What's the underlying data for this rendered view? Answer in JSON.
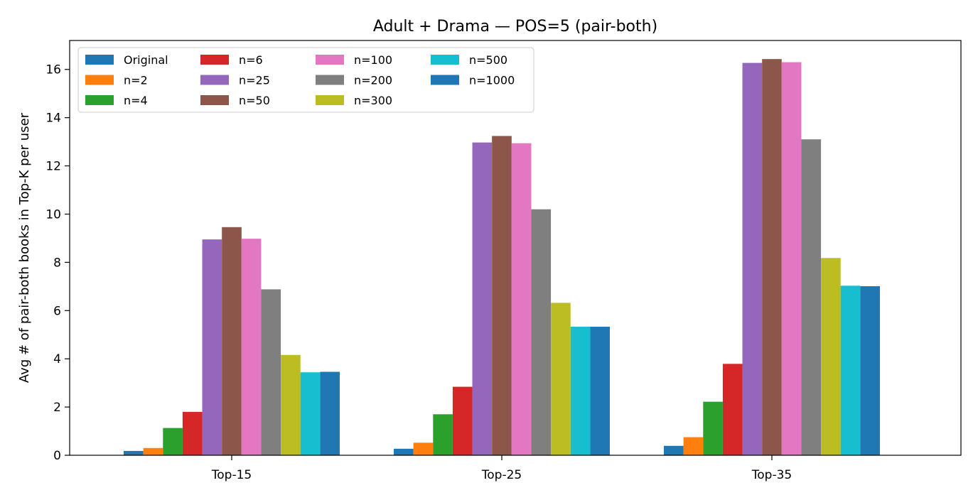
{
  "chart_data": {
    "type": "bar",
    "title": "Adult + Drama — POS=5 (pair-both)",
    "xlabel": "",
    "ylabel": "Avg # of pair-both books in Top-K per user",
    "categories": [
      "Top-15",
      "Top-25",
      "Top-35"
    ],
    "ylim": [
      0,
      17.2
    ],
    "yticks": [
      0,
      2,
      4,
      6,
      8,
      10,
      12,
      14,
      16
    ],
    "grid": false,
    "legend_position": "top-left",
    "legend_columns": 4,
    "series": [
      {
        "name": "Original",
        "color": "#1f77b4",
        "values": [
          0.18,
          0.27,
          0.39
        ]
      },
      {
        "name": "n=2",
        "color": "#ff7f0e",
        "values": [
          0.3,
          0.52,
          0.75
        ]
      },
      {
        "name": "n=4",
        "color": "#2ca02c",
        "values": [
          1.13,
          1.7,
          2.22
        ]
      },
      {
        "name": "n=6",
        "color": "#d62728",
        "values": [
          1.8,
          2.84,
          3.79
        ]
      },
      {
        "name": "n=25",
        "color": "#9467bd",
        "values": [
          8.95,
          12.97,
          16.27
        ]
      },
      {
        "name": "n=50",
        "color": "#8c564b",
        "values": [
          9.46,
          13.24,
          16.43
        ]
      },
      {
        "name": "n=100",
        "color": "#e377c2",
        "values": [
          8.98,
          12.94,
          16.3
        ]
      },
      {
        "name": "n=200",
        "color": "#7f7f7f",
        "values": [
          6.88,
          10.2,
          13.1
        ]
      },
      {
        "name": "n=300",
        "color": "#bcbd22",
        "values": [
          4.16,
          6.32,
          8.18
        ]
      },
      {
        "name": "n=500",
        "color": "#17becf",
        "values": [
          3.44,
          5.33,
          7.03
        ]
      },
      {
        "name": "n=1000",
        "color": "#1f77b4",
        "values": [
          3.46,
          5.33,
          7.01
        ]
      }
    ]
  }
}
